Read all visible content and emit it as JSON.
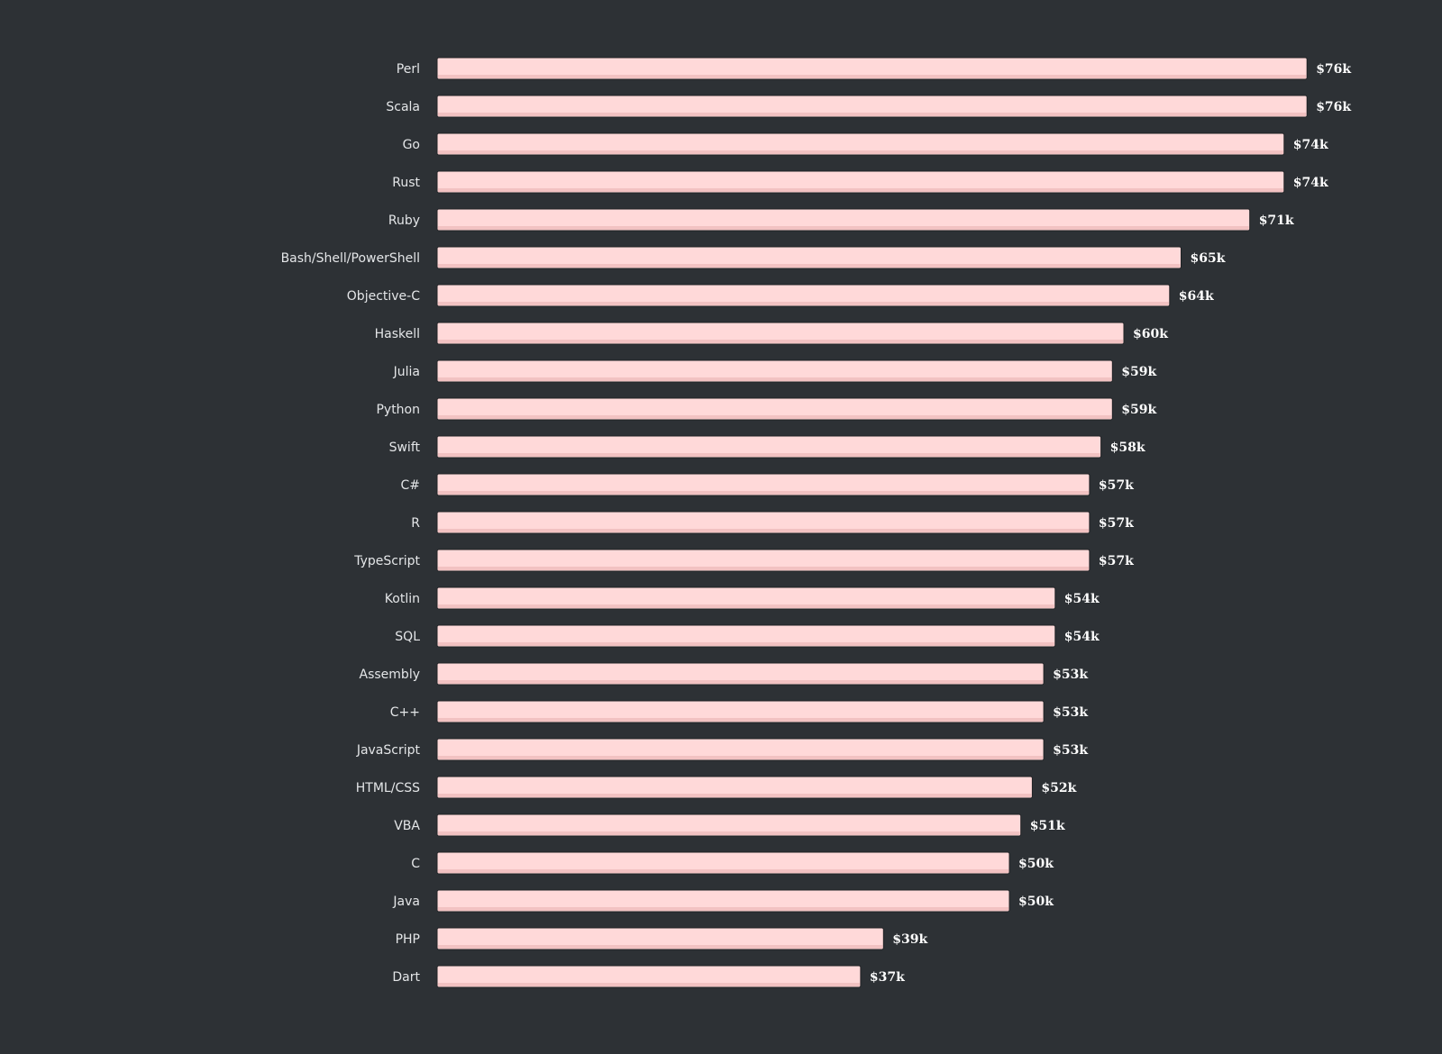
{
  "colors": {
    "background": "#2d3135",
    "bar_fill": "#ffd9d9",
    "bar_bottom": "#f2c2c2",
    "bar_stroke": "#1f2225",
    "label_text": "#e4e6e8",
    "value_text": "#ffffff"
  },
  "chart_data": {
    "type": "bar",
    "orientation": "horizontal",
    "title": "",
    "xlabel": "",
    "ylabel": "",
    "grid": false,
    "value_prefix": "$",
    "value_suffix": "k",
    "xlim": [
      0,
      80
    ],
    "categories": [
      "Perl",
      "Scala",
      "Go",
      "Rust",
      "Ruby",
      "Bash/Shell/PowerShell",
      "Objective-C",
      "Haskell",
      "Julia",
      "Python",
      "Swift",
      "C#",
      "R",
      "TypeScript",
      "Kotlin",
      "SQL",
      "Assembly",
      "C++",
      "JavaScript",
      "HTML/CSS",
      "VBA",
      "C",
      "Java",
      "PHP",
      "Dart"
    ],
    "values": [
      76,
      76,
      74,
      74,
      71,
      65,
      64,
      60,
      59,
      59,
      58,
      57,
      57,
      57,
      54,
      54,
      53,
      53,
      53,
      52,
      51,
      50,
      50,
      39,
      37
    ],
    "value_labels": [
      "$76k",
      "$76k",
      "$74k",
      "$74k",
      "$71k",
      "$65k",
      "$64k",
      "$60k",
      "$59k",
      "$59k",
      "$58k",
      "$57k",
      "$57k",
      "$57k",
      "$54k",
      "$54k",
      "$53k",
      "$53k",
      "$53k",
      "$52k",
      "$51k",
      "$50k",
      "$50k",
      "$39k",
      "$37k"
    ]
  }
}
